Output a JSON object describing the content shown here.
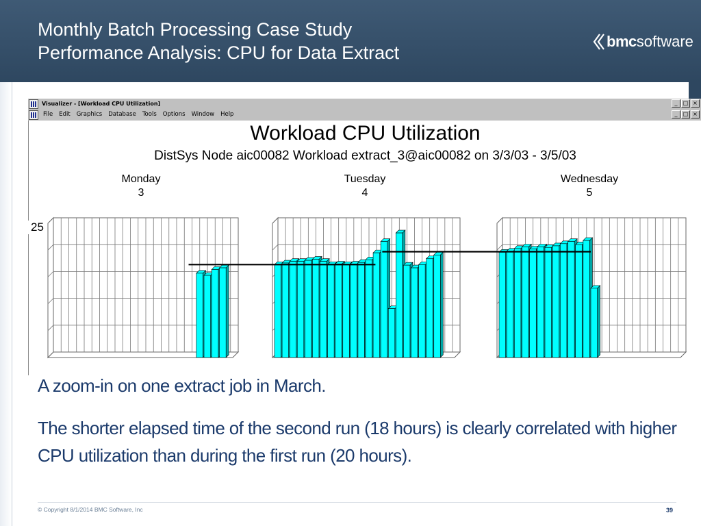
{
  "slide": {
    "title_line1": "Monthly Batch Processing Case Study",
    "title_line2": "Performance Analysis: CPU for Data Extract",
    "logo_bold": "bmc",
    "logo_light": "software",
    "note1": "A zoom-in on one extract job in March.",
    "note2": "The shorter elapsed time of the second run (18 hours) is clearly correlated with higher CPU utilization than during the first run (20 hours).",
    "copyright": "© Copyright 8/1/2014 BMC Software, Inc",
    "page_number": "39"
  },
  "window": {
    "title": "Visualizer - [Workload CPU Utilization]",
    "menu": [
      "File",
      "Edit",
      "Graphics",
      "Database",
      "Tools",
      "Options",
      "Window",
      "Help"
    ],
    "buttons": [
      "_",
      "□",
      "×"
    ]
  },
  "colors": {
    "header_bg": "#2e4760",
    "bar_fill": "#00ffff",
    "bar_side": "#00a6a6",
    "note_text": "#1b3a6b"
  },
  "chart_data": {
    "type": "bar",
    "title": "Workload CPU Utilization",
    "subtitle": "DistSys Node aic00082 Workload extract_3@aic00082 on 3/3/03 - 3/5/03",
    "ytick_labels": [
      "25"
    ],
    "ylim": [
      0,
      25
    ],
    "grid": true,
    "days": [
      {
        "name": "Monday",
        "number": "3",
        "values": [
          0,
          0,
          0,
          0,
          0,
          0,
          0,
          0,
          0,
          0,
          0,
          0,
          0,
          0,
          0,
          0,
          0,
          0,
          0,
          15.7,
          15.3,
          16.4,
          16.7,
          0
        ],
        "average": 16.8,
        "average_span": [
          18,
          23
        ]
      },
      {
        "name": "Tuesday",
        "number": "4",
        "values": [
          17.3,
          17.6,
          17.9,
          17.9,
          18.1,
          18.3,
          17.9,
          17.3,
          17.4,
          17.3,
          17.4,
          17.7,
          18.2,
          19.5,
          21.6,
          9.1,
          23.2,
          17.2,
          16.7,
          17.3,
          18.4,
          19.1,
          0,
          0
        ],
        "average": 16.9,
        "average_span": [
          0,
          13
        ]
      },
      {
        "name": "Wednesday",
        "number": "5",
        "values": [
          19.6,
          19.8,
          20.3,
          20.6,
          20.2,
          20.6,
          20.5,
          20.8,
          21.2,
          21.6,
          21.0,
          21.8,
          12.9,
          0,
          0,
          0,
          0,
          0,
          0,
          0,
          0,
          0,
          0,
          0
        ],
        "average": 19.2,
        "average_span": [
          0,
          12
        ]
      }
    ]
  }
}
